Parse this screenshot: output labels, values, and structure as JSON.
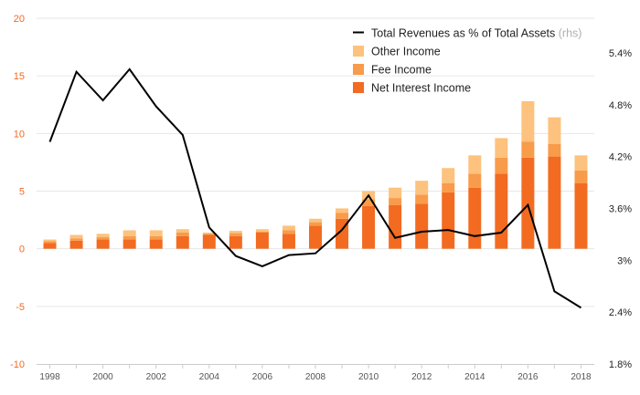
{
  "chart_data": {
    "type": "bar",
    "title": "",
    "xlabel": "",
    "ylabel": "",
    "categories": [
      "1998",
      "1999",
      "2000",
      "2001",
      "2002",
      "2003",
      "2004",
      "2005",
      "2006",
      "2007",
      "2008",
      "2009",
      "2010",
      "2011",
      "2012",
      "2013",
      "2014",
      "2015",
      "2016",
      "2017",
      "2018"
    ],
    "x_tick_labels": [
      "1998",
      "2000",
      "2002",
      "2004",
      "2006",
      "2008",
      "2010",
      "2012",
      "2014",
      "2016",
      "2018"
    ],
    "ylim_left": [
      -10,
      20
    ],
    "yticks_left": [
      "20",
      "15",
      "10",
      "5",
      "0",
      "-5",
      "-10"
    ],
    "ylim_right_pct": [
      1.8,
      5.8
    ],
    "yticks_right": [
      "5.4%",
      "4.8%",
      "4.2%",
      "3.6%",
      "3%",
      "2.4%",
      "1.8%"
    ],
    "series": [
      {
        "name": "Net Interest Income",
        "kind": "stacked-bar",
        "color": "#f26b21",
        "values": [
          0.5,
          0.7,
          0.8,
          0.8,
          0.8,
          1.1,
          1.2,
          1.1,
          1.4,
          1.3,
          2.0,
          2.6,
          3.7,
          3.8,
          3.9,
          4.9,
          5.3,
          6.5,
          7.9,
          8.0,
          5.7
        ]
      },
      {
        "name": "Fee Income",
        "kind": "stacked-bar",
        "color": "#f89b4a",
        "values": [
          0.15,
          0.2,
          0.2,
          0.3,
          0.3,
          0.3,
          0.1,
          0.25,
          0.1,
          0.3,
          0.3,
          0.5,
          0.6,
          0.6,
          0.8,
          0.8,
          1.2,
          1.4,
          1.4,
          1.1,
          1.1
        ]
      },
      {
        "name": "Other Income",
        "kind": "stacked-bar",
        "color": "#fdc27d",
        "values": [
          0.15,
          0.3,
          0.3,
          0.5,
          0.5,
          0.3,
          0.1,
          0.2,
          0.2,
          0.4,
          0.3,
          0.4,
          0.7,
          0.9,
          1.2,
          1.3,
          1.6,
          1.7,
          3.5,
          2.3,
          1.3
        ]
      },
      {
        "name": "Total Revenues as % of Total Assets",
        "kind": "line",
        "axis": "right",
        "color": "#000000",
        "values": [
          4.37,
          5.18,
          4.85,
          5.21,
          4.78,
          4.45,
          3.38,
          3.05,
          2.93,
          3.06,
          3.08,
          3.35,
          3.75,
          3.26,
          3.33,
          3.35,
          3.28,
          3.32,
          3.64,
          2.64,
          2.45
        ]
      }
    ],
    "legend": {
      "placement": "top-right",
      "items": [
        {
          "label": "Total Revenues as % of Total Assets",
          "note": "(rhs)",
          "symbol": "line",
          "color": "#000000"
        },
        {
          "label": "Other Income",
          "symbol": "box",
          "color": "#fdc27d"
        },
        {
          "label": "Fee Income",
          "symbol": "box",
          "color": "#f89b4a"
        },
        {
          "label": "Net Interest Income",
          "symbol": "box",
          "color": "#f26b21"
        }
      ]
    },
    "grid": true
  }
}
